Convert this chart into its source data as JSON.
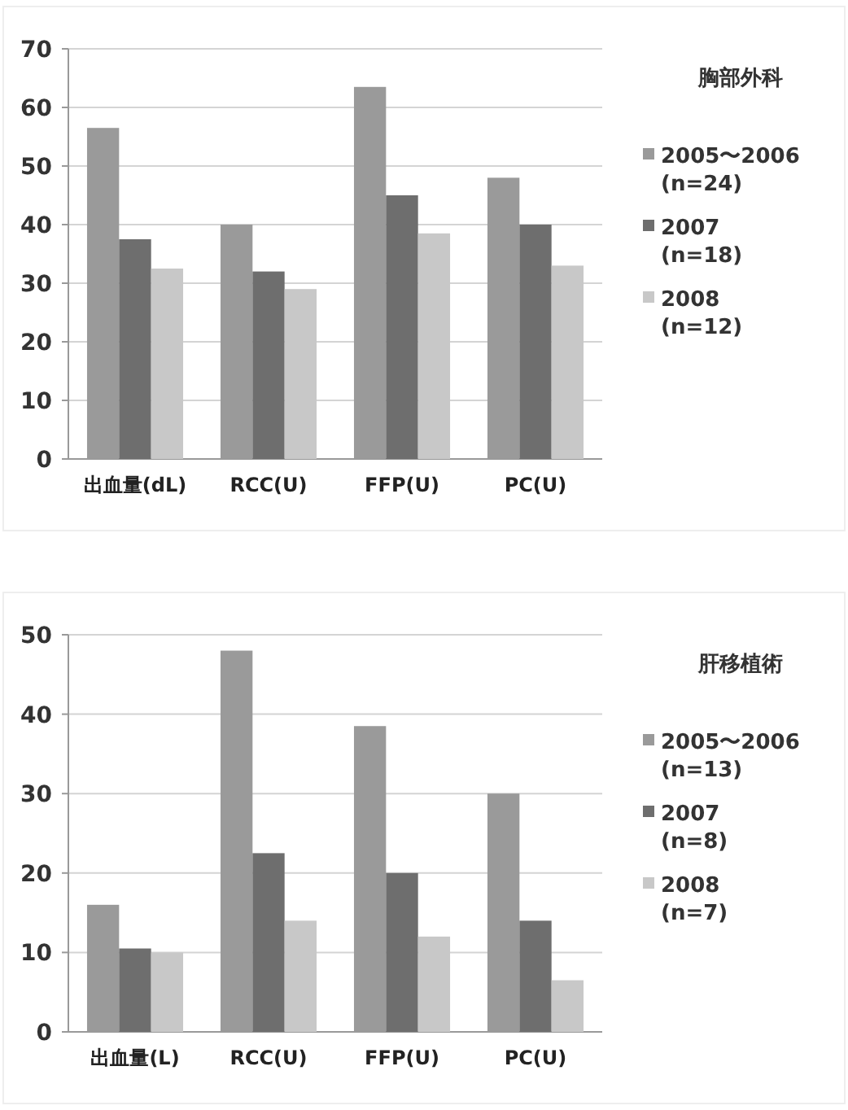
{
  "chart_data": [
    {
      "type": "bar",
      "legend_title": "胸部外科",
      "categories": [
        "出血量(dL)",
        "RCC(U)",
        "FFP(U)",
        "PC(U)"
      ],
      "series": [
        {
          "name": "2005〜2006\n(n=24)",
          "color": "#9a9a9a",
          "values": [
            56.5,
            40,
            63.5,
            48
          ]
        },
        {
          "name": "2007\n(n=18)",
          "color": "#6e6e6e",
          "values": [
            37.5,
            32,
            45,
            40
          ]
        },
        {
          "name": "2008\n(n=12)",
          "color": "#c8c8c8",
          "values": [
            32.5,
            29,
            38.5,
            33
          ]
        }
      ],
      "ylim": [
        0,
        70
      ],
      "yticks": [
        0,
        10,
        20,
        30,
        40,
        50,
        60,
        70
      ],
      "grid": "y",
      "legend": "right"
    },
    {
      "type": "bar",
      "legend_title": "肝移植術",
      "categories": [
        "出血量(L)",
        "RCC(U)",
        "FFP(U)",
        "PC(U)"
      ],
      "series": [
        {
          "name": "2005〜2006\n(n=13)",
          "color": "#9a9a9a",
          "values": [
            16,
            48,
            38.5,
            30
          ]
        },
        {
          "name": "2007\n(n=8)",
          "color": "#6e6e6e",
          "values": [
            10.5,
            22.5,
            20,
            14
          ]
        },
        {
          "name": "2008\n(n=7)",
          "color": "#c8c8c8",
          "values": [
            10,
            14,
            12,
            6.5
          ]
        }
      ],
      "ylim": [
        0,
        50
      ],
      "yticks": [
        0,
        10,
        20,
        30,
        40,
        50
      ],
      "grid": "y",
      "legend": "right"
    }
  ]
}
